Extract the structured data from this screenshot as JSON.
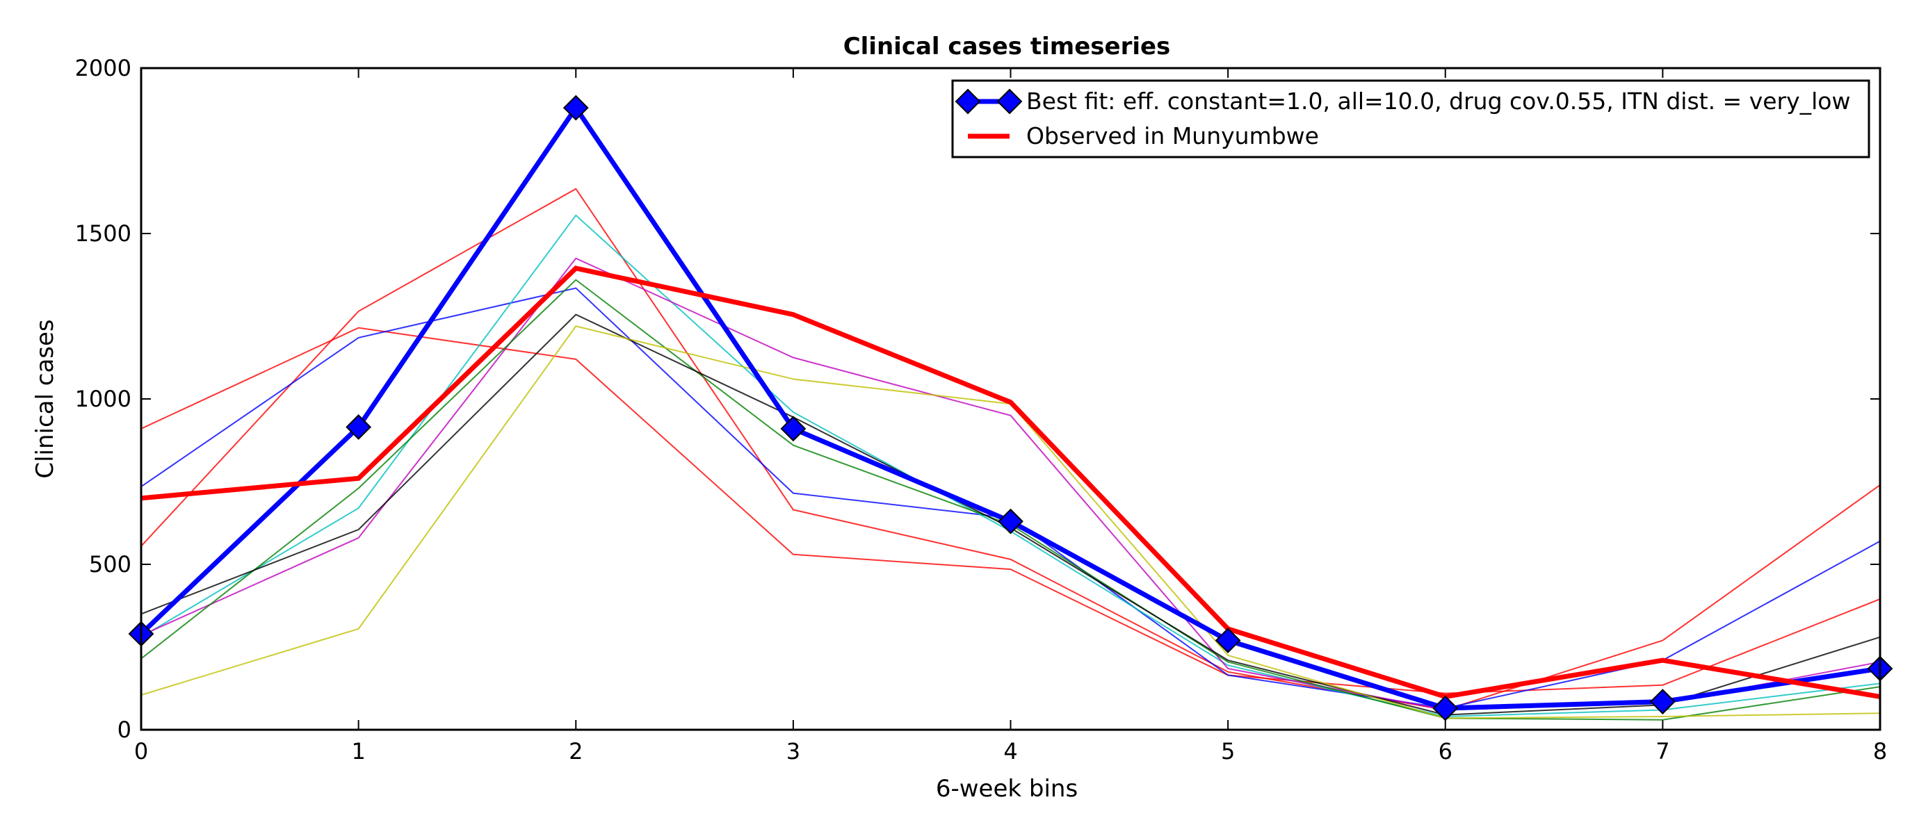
{
  "chart_data": {
    "type": "line",
    "title": "Clinical cases timeseries",
    "xlabel": "6-week bins",
    "ylabel": "Clinical cases",
    "xlim": [
      0,
      8
    ],
    "ylim": [
      0,
      2000
    ],
    "xticks": [
      0,
      1,
      2,
      3,
      4,
      5,
      6,
      7,
      8
    ],
    "yticks": [
      0,
      500,
      1000,
      1500,
      2000
    ],
    "grid": false,
    "legend_position": "top-right",
    "x": [
      0,
      1,
      2,
      3,
      4,
      5,
      6,
      7,
      8
    ],
    "background_series": [
      {
        "color": "#ff0000",
        "values": [
          910,
          1215,
          1120,
          530,
          485,
          165,
          110,
          135,
          395
        ]
      },
      {
        "color": "#ff0000",
        "values": [
          555,
          1265,
          1635,
          665,
          515,
          175,
          60,
          270,
          740
        ]
      },
      {
        "color": "#0000ff",
        "values": [
          735,
          1185,
          1335,
          715,
          640,
          165,
          65,
          210,
          570
        ]
      },
      {
        "color": "#00bfbf",
        "values": [
          280,
          670,
          1555,
          960,
          600,
          195,
          40,
          60,
          140
        ]
      },
      {
        "color": "#bf00bf",
        "values": [
          285,
          580,
          1425,
          1125,
          950,
          185,
          60,
          80,
          205
        ]
      },
      {
        "color": "#008000",
        "values": [
          215,
          730,
          1360,
          860,
          620,
          205,
          35,
          30,
          130
        ]
      },
      {
        "color": "#000000",
        "values": [
          350,
          605,
          1255,
          945,
          610,
          210,
          45,
          75,
          280
        ]
      },
      {
        "color": "#bfbf00",
        "values": [
          105,
          305,
          1220,
          1060,
          985,
          225,
          35,
          40,
          50
        ]
      }
    ],
    "series": [
      {
        "name": "Best fit: eff. constant=1.0, all=10.0, drug cov.0.55, ITN dist. = very_low",
        "color": "#0000ff",
        "marker": "diamond",
        "values": [
          290,
          915,
          1880,
          910,
          630,
          270,
          65,
          85,
          185
        ]
      },
      {
        "name": "Observed in Munyumbwe",
        "color": "#ff0000",
        "marker": "none",
        "values": [
          700,
          760,
          1395,
          1255,
          990,
          305,
          100,
          210,
          100
        ]
      }
    ]
  }
}
